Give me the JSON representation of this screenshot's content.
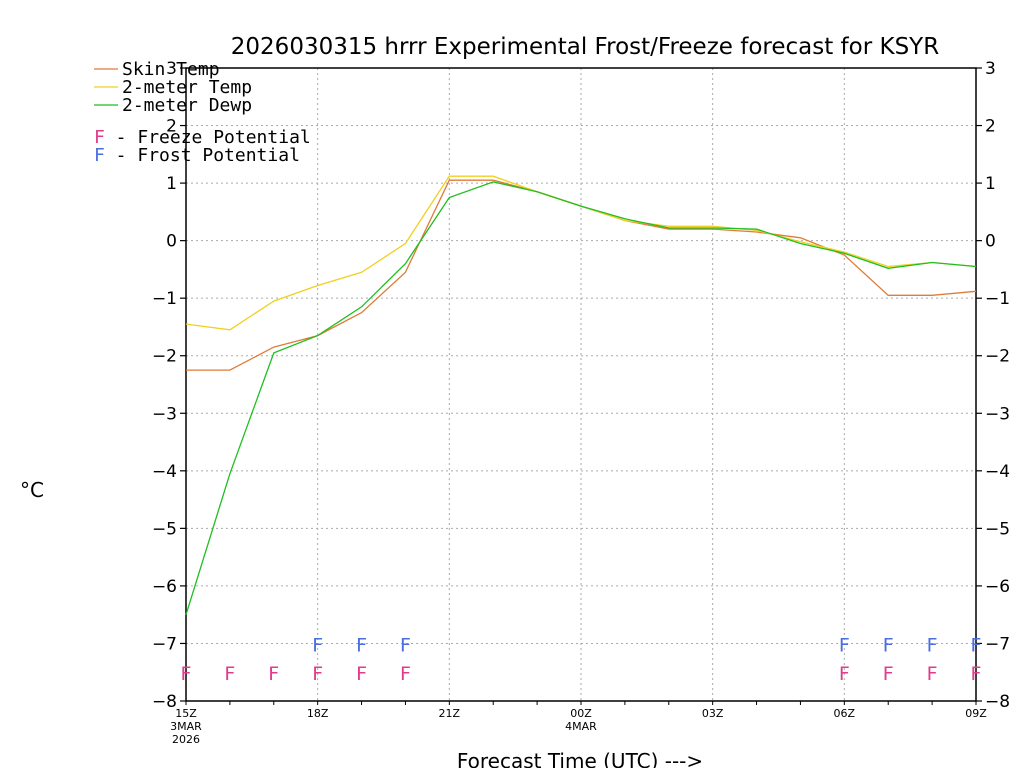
{
  "chart_data": {
    "type": "line",
    "title": "2026030315 hrrr Experimental Frost/Freeze forecast for KSYR",
    "xlabel": "Forecast Time (UTC) --->",
    "ylabel": "°C",
    "ylim": [
      -8,
      3
    ],
    "yticks": [
      "3",
      "2",
      "1",
      "0",
      "−1",
      "−2",
      "−3",
      "−4",
      "−5",
      "−6",
      "−7",
      "−8"
    ],
    "x": [
      0,
      1,
      2,
      3,
      4,
      5,
      6,
      7,
      8,
      9,
      10,
      11,
      12,
      13,
      14,
      15,
      16,
      17,
      18
    ],
    "xticks": [
      {
        "hour": 0,
        "label": "15Z",
        "sub1": "3MAR",
        "sub2": "2026"
      },
      {
        "hour": 3,
        "label": "18Z",
        "sub1": "",
        "sub2": ""
      },
      {
        "hour": 6,
        "label": "21Z",
        "sub1": "",
        "sub2": ""
      },
      {
        "hour": 9,
        "label": "00Z",
        "sub1": "4MAR",
        "sub2": ""
      },
      {
        "hour": 12,
        "label": "03Z",
        "sub1": "",
        "sub2": ""
      },
      {
        "hour": 15,
        "label": "06Z",
        "sub1": "",
        "sub2": ""
      },
      {
        "hour": 18,
        "label": "09Z",
        "sub1": "",
        "sub2": ""
      }
    ],
    "series": [
      {
        "name": "Skin Temp",
        "color": "#e07b39",
        "values": [
          -2.25,
          -2.25,
          -1.85,
          -1.65,
          -1.25,
          -0.55,
          1.05,
          1.05,
          0.85,
          0.6,
          0.35,
          0.2,
          0.2,
          0.15,
          0.05,
          -0.25,
          -0.95,
          -0.95,
          -0.88
        ]
      },
      {
        "name": "2-meter Temp",
        "color": "#f0d020",
        "values": [
          -1.45,
          -1.55,
          -1.05,
          -0.78,
          -0.55,
          -0.05,
          1.12,
          1.12,
          0.85,
          0.6,
          0.35,
          0.25,
          0.25,
          0.18,
          -0.02,
          -0.2,
          -0.45,
          -0.38,
          -0.45
        ]
      },
      {
        "name": "2-meter Dewp",
        "color": "#1fbf1f",
        "values": [
          -6.5,
          -4.05,
          -1.95,
          -1.65,
          -1.15,
          -0.4,
          0.75,
          1.02,
          0.85,
          0.6,
          0.38,
          0.22,
          0.22,
          0.2,
          -0.05,
          -0.22,
          -0.48,
          -0.38,
          -0.45
        ]
      }
    ],
    "legend_flags": [
      {
        "letter": "F",
        "text": " - Freeze Potential",
        "color": "#e03c8a"
      },
      {
        "letter": "F",
        "text": " - Frost Potential",
        "color": "#4a6ee0"
      }
    ],
    "frost_flag_hours": [
      3,
      4,
      5,
      15,
      16,
      17,
      18
    ],
    "freeze_flag_hours": [
      0,
      1,
      2,
      3,
      4,
      5,
      15,
      16,
      17,
      18
    ],
    "flag_letter": "F",
    "frost_color": "#4a6ee0",
    "freeze_color": "#e03c8a"
  }
}
